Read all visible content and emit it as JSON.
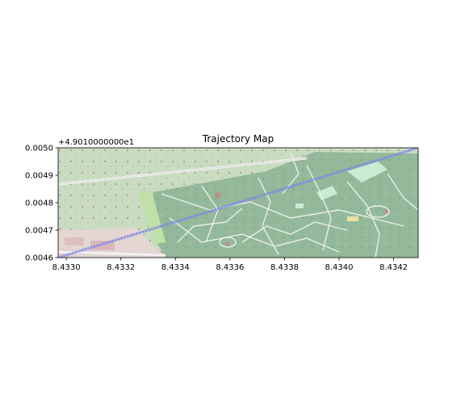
{
  "chart_data": {
    "type": "scatter",
    "title": "Trajectory Map",
    "xlabel": "",
    "ylabel": "",
    "xlim": [
      8.43297,
      8.43429
    ],
    "ylim": [
      0.0046,
      0.005
    ],
    "y_offset_label": "+4.9010000000e1",
    "x_ticks": [
      "8.4330",
      "8.4332",
      "8.4334",
      "8.4336",
      "8.4338",
      "8.4340",
      "8.4342"
    ],
    "y_ticks": [
      "0.0046",
      "0.0047",
      "0.0048",
      "0.0049",
      "0.0050"
    ],
    "grid": false,
    "basemap": "street map background (park with paths, road, buildings)",
    "series": [
      {
        "marker_color": "#7f86e6",
        "points_x_start": 8.43297,
        "points_y_start": 0.0046,
        "points_x_end": 8.43429,
        "points_y_end": 0.005,
        "n_points": 120
      }
    ]
  }
}
